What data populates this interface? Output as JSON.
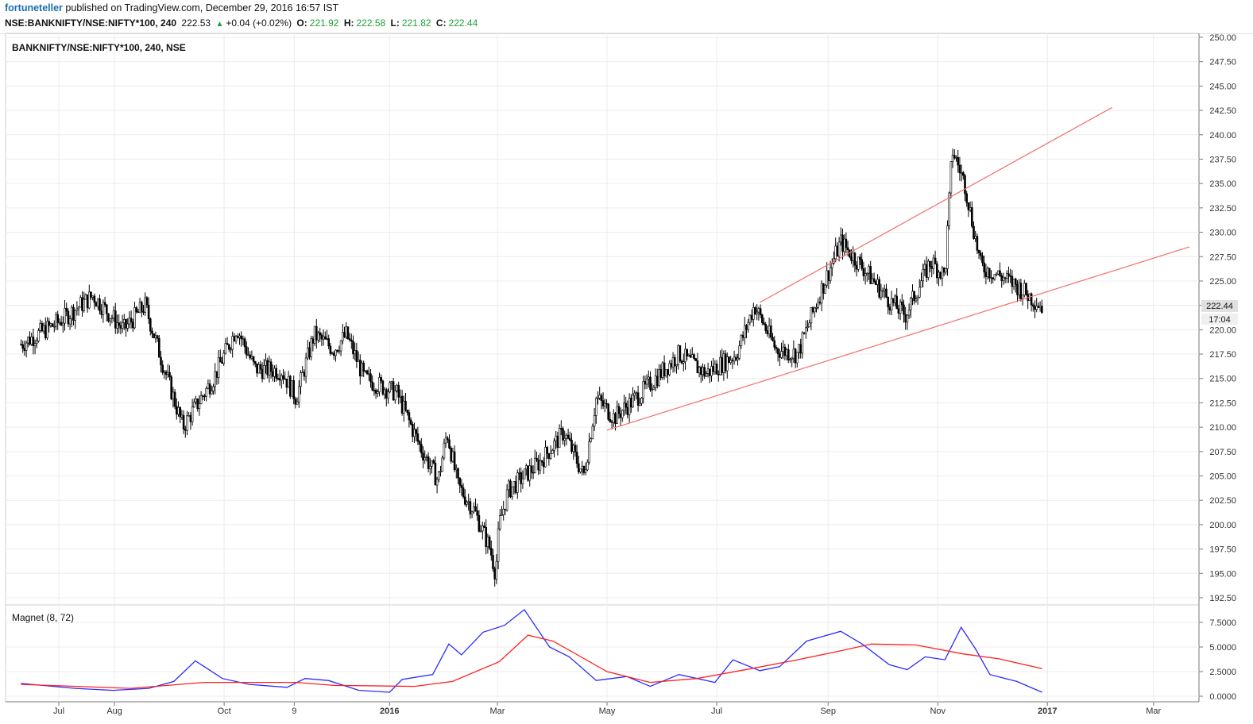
{
  "header": {
    "author": "fortuneteller",
    "published_text": "published on TradingView.com, December 29, 2016 16:57 IST",
    "symbol": "NSE:BANKNIFTY/NSE:NIFTY*100, 240",
    "last": "222.53",
    "change": "+0.04 (+0.02%)",
    "open_label": "O:",
    "open": "221.92",
    "high_label": "H:",
    "high": "222.58",
    "low_label": "L:",
    "low": "221.82",
    "close_label": "C:",
    "close": "222.44"
  },
  "main_pane": {
    "title": "BANKNIFTY/NSE:NIFTY*100, 240, NSE",
    "price_label": "222.44",
    "time_label": "17:04"
  },
  "colors": {
    "candle": "#000000",
    "trendline": "#f26d6d",
    "magnet_fast": "#2b2bff",
    "magnet_slow": "#ff2020",
    "grid": "#ececec",
    "pos_green": "#1fa037"
  },
  "chart_data": [
    {
      "type": "candlestick",
      "title": "BANKNIFTY/NSE:NIFTY*100, 240, NSE",
      "ylim": [
        192.5,
        250.0
      ],
      "y_ticks": [
        "250.00",
        "247.50",
        "245.00",
        "242.50",
        "240.00",
        "237.50",
        "235.00",
        "232.50",
        "230.00",
        "227.50",
        "225.00",
        "222.50",
        "220.00",
        "217.50",
        "215.00",
        "212.50",
        "210.00",
        "207.50",
        "205.00",
        "202.50",
        "200.00",
        "197.50",
        "195.00",
        "192.50"
      ],
      "x_tick_labels": [
        "Jul",
        "Aug",
        "Oct",
        "9",
        "2016",
        "Mar",
        "May",
        "Jul",
        "Sep",
        "Nov",
        "2017",
        "Mar"
      ],
      "price_path": [
        [
          "2015-06-10",
          218.5
        ],
        [
          "2015-07-01",
          220.8
        ],
        [
          "2015-07-20",
          223.5
        ],
        [
          "2015-08-06",
          220.0
        ],
        [
          "2015-08-18",
          222.5
        ],
        [
          "2015-08-27",
          217.0
        ],
        [
          "2015-09-08",
          210.0
        ],
        [
          "2015-09-25",
          215.0
        ],
        [
          "2015-10-08",
          220.2
        ],
        [
          "2015-10-18",
          216.0
        ],
        [
          "2015-11-02",
          215.8
        ],
        [
          "2015-11-10",
          213.0
        ],
        [
          "2015-11-20",
          219.5
        ],
        [
          "2015-12-01",
          218.0
        ],
        [
          "2015-12-08",
          219.5
        ],
        [
          "2015-12-18",
          215.0
        ],
        [
          "2016-01-05",
          213.5
        ],
        [
          "2016-01-18",
          208.0
        ],
        [
          "2016-01-28",
          204.5
        ],
        [
          "2016-02-02",
          209.5
        ],
        [
          "2016-02-08",
          204.0
        ],
        [
          "2016-02-17",
          201.5
        ],
        [
          "2016-02-26",
          197.5
        ],
        [
          "2016-02-29",
          195.0
        ],
        [
          "2016-03-02",
          200.0
        ],
        [
          "2016-03-07",
          203.5
        ],
        [
          "2016-03-25",
          206.5
        ],
        [
          "2016-04-07",
          209.5
        ],
        [
          "2016-04-18",
          205.0
        ],
        [
          "2016-04-25",
          213.0
        ],
        [
          "2016-05-05",
          211.0
        ],
        [
          "2016-05-20",
          213.5
        ],
        [
          "2016-06-10",
          217.5
        ],
        [
          "2016-06-25",
          215.5
        ],
        [
          "2016-07-12",
          217.5
        ],
        [
          "2016-07-22",
          222.5
        ],
        [
          "2016-08-03",
          218.0
        ],
        [
          "2016-08-15",
          217.5
        ],
        [
          "2016-08-28",
          224.0
        ],
        [
          "2016-09-08",
          229.0
        ],
        [
          "2016-09-22",
          226.0
        ],
        [
          "2016-10-05",
          223.0
        ],
        [
          "2016-10-14",
          221.5
        ],
        [
          "2016-10-28",
          227.0
        ],
        [
          "2016-11-05",
          225.5
        ],
        [
          "2016-11-09",
          238.5
        ],
        [
          "2016-11-16",
          235.0
        ],
        [
          "2016-11-25",
          226.5
        ],
        [
          "2016-12-06",
          225.5
        ],
        [
          "2016-12-15",
          224.5
        ],
        [
          "2016-12-29",
          222.4
        ]
      ],
      "trendlines": [
        {
          "name": "upper",
          "from": [
            "2016-07-25",
            222.8
          ],
          "to": [
            "2017-02-06",
            242.8
          ]
        },
        {
          "name": "lower",
          "from": [
            "2016-05-01",
            209.7
          ],
          "to": [
            "2017-03-21",
            228.5
          ]
        }
      ]
    },
    {
      "type": "line",
      "title": "Magnet (8, 72)",
      "ylim": [
        0.0,
        9.0
      ],
      "y_ticks": [
        "7.5000",
        "5.0000",
        "2.5000",
        "0.0000"
      ],
      "series": [
        {
          "name": "fast",
          "values": [
            [
              "2015-06-10",
              1.3
            ],
            [
              "2015-07-10",
              0.8
            ],
            [
              "2015-07-31",
              0.6
            ],
            [
              "2015-08-20",
              0.8
            ],
            [
              "2015-09-03",
              1.5
            ],
            [
              "2015-09-15",
              3.6
            ],
            [
              "2015-09-30",
              1.8
            ],
            [
              "2015-10-15",
              1.2
            ],
            [
              "2015-11-05",
              0.9
            ],
            [
              "2015-11-15",
              1.8
            ],
            [
              "2015-11-28",
              1.6
            ],
            [
              "2015-12-15",
              0.6
            ],
            [
              "2016-01-01",
              0.4
            ],
            [
              "2016-01-08",
              1.7
            ],
            [
              "2016-01-25",
              2.2
            ],
            [
              "2016-02-03",
              5.3
            ],
            [
              "2016-02-10",
              4.2
            ],
            [
              "2016-02-22",
              6.5
            ],
            [
              "2016-03-05",
              7.2
            ],
            [
              "2016-03-16",
              8.8
            ],
            [
              "2016-03-30",
              5.0
            ],
            [
              "2016-04-10",
              4.0
            ],
            [
              "2016-04-25",
              1.6
            ],
            [
              "2016-05-12",
              2.0
            ],
            [
              "2016-05-25",
              1.0
            ],
            [
              "2016-06-10",
              2.2
            ],
            [
              "2016-06-30",
              1.4
            ],
            [
              "2016-07-10",
              3.7
            ],
            [
              "2016-07-25",
              2.6
            ],
            [
              "2016-08-05",
              3.0
            ],
            [
              "2016-08-20",
              5.6
            ],
            [
              "2016-09-08",
              6.6
            ],
            [
              "2016-09-20",
              5.3
            ],
            [
              "2016-10-05",
              3.2
            ],
            [
              "2016-10-15",
              2.7
            ],
            [
              "2016-10-25",
              4.0
            ],
            [
              "2016-11-05",
              3.7
            ],
            [
              "2016-11-14",
              7.0
            ],
            [
              "2016-11-22",
              4.8
            ],
            [
              "2016-11-30",
              2.2
            ],
            [
              "2016-12-15",
              1.5
            ],
            [
              "2016-12-29",
              0.4
            ]
          ]
        },
        {
          "name": "slow",
          "values": [
            [
              "2015-06-10",
              1.2
            ],
            [
              "2015-08-10",
              0.8
            ],
            [
              "2015-09-20",
              1.4
            ],
            [
              "2015-11-10",
              1.4
            ],
            [
              "2015-12-01",
              1.1
            ],
            [
              "2016-01-15",
              1.0
            ],
            [
              "2016-02-05",
              1.5
            ],
            [
              "2016-03-02",
              3.5
            ],
            [
              "2016-03-18",
              6.2
            ],
            [
              "2016-04-01",
              5.6
            ],
            [
              "2016-05-01",
              2.5
            ],
            [
              "2016-05-25",
              1.4
            ],
            [
              "2016-06-20",
              1.8
            ],
            [
              "2016-07-20",
              2.8
            ],
            [
              "2016-08-15",
              3.7
            ],
            [
              "2016-09-05",
              4.5
            ],
            [
              "2016-09-25",
              5.3
            ],
            [
              "2016-10-20",
              5.2
            ],
            [
              "2016-11-15",
              4.3
            ],
            [
              "2016-12-05",
              3.8
            ],
            [
              "2016-12-29",
              2.8
            ]
          ]
        }
      ]
    }
  ]
}
